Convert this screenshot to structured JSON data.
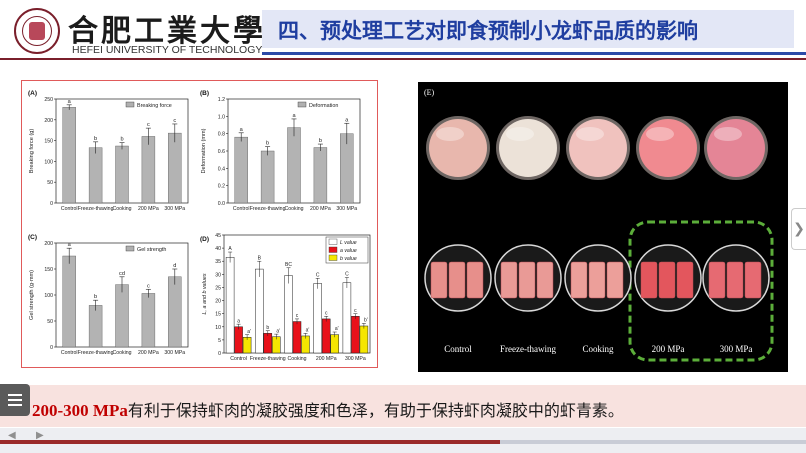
{
  "header": {
    "school_cn": "合肥工業大學",
    "school_en": "HEFEI UNIVERSITY OF TECHNOLOGY",
    "title": "四、预处理工艺对即食预制小龙虾品质的影响"
  },
  "charts": {
    "x_categories": [
      "Control",
      "Freeze-thawing",
      "Cooking",
      "200 MPa",
      "300 MPa"
    ],
    "panel_A": {
      "letter": "(A)",
      "legend": "Breaking force",
      "ylabel": "Breaking force (g)",
      "ylim": [
        0,
        250
      ],
      "yticks": [
        0,
        50,
        100,
        150,
        200,
        250
      ],
      "values": [
        230,
        133,
        137,
        160,
        168
      ],
      "errors": [
        6,
        14,
        8,
        20,
        22
      ],
      "sig": [
        "a",
        "b",
        "b",
        "c",
        "c"
      ]
    },
    "panel_B": {
      "letter": "(B)",
      "legend": "Deformation",
      "ylabel": "Deformation (mm)",
      "ylim": [
        0,
        1.2
      ],
      "yticks": [
        "0.0",
        "0.2",
        "0.4",
        "0.6",
        "0.8",
        "1.0",
        "1.2"
      ],
      "values": [
        0.76,
        0.6,
        0.87,
        0.64,
        0.8
      ],
      "errors": [
        0.05,
        0.05,
        0.1,
        0.04,
        0.12
      ],
      "sig": [
        "a",
        "b",
        "a",
        "b",
        "a"
      ]
    },
    "panel_C": {
      "letter": "(C)",
      "legend": "Gel strength",
      "ylabel": "Gel strength (g·mm)",
      "ylim": [
        0,
        200
      ],
      "yticks": [
        0,
        50,
        100,
        150,
        200
      ],
      "values": [
        175,
        80,
        120,
        103,
        135
      ],
      "errors": [
        15,
        10,
        15,
        8,
        15
      ],
      "sig": [
        "a",
        "b",
        "cd",
        "c",
        "d"
      ]
    },
    "panel_D": {
      "letter": "(D)",
      "ylabel": "L, a and b values",
      "ylim": [
        0,
        45
      ],
      "yticks": [
        0,
        5,
        10,
        15,
        20,
        25,
        30,
        35,
        40,
        45
      ],
      "legend": [
        "L value",
        "a value",
        "b value"
      ],
      "colors": [
        "#ffffff",
        "#e8111a",
        "#f5e600"
      ],
      "series": [
        {
          "name": "L value",
          "values": [
            36.5,
            32,
            29.5,
            26.5,
            26.8
          ],
          "errors": [
            2,
            3,
            3,
            2,
            2
          ],
          "sig": [
            "A",
            "B",
            "BC",
            "C",
            "C"
          ]
        },
        {
          "name": "a value",
          "values": [
            10,
            7.5,
            12,
            13,
            14
          ],
          "errors": [
            1,
            1,
            1,
            1,
            1
          ],
          "sig": [
            "a",
            "b",
            "c",
            "c",
            "c"
          ]
        },
        {
          "name": "b value",
          "values": [
            6,
            6.2,
            6.5,
            7,
            10.3
          ],
          "errors": [
            1,
            1,
            1,
            1,
            1
          ],
          "sig": [
            "a'",
            "a'",
            "a'",
            "a'",
            "b'"
          ]
        }
      ]
    }
  },
  "photo": {
    "letter": "(E)",
    "labels": [
      "Control",
      "Freeze-thawing",
      "Cooking",
      "200 MPa",
      "300 MPa"
    ],
    "colors": {
      "control": "#e8b7ad",
      "freeze": "#ece2d8",
      "cooking": "#f0c2be",
      "mpa200": "#f08a90",
      "mpa300": "#e48596",
      "dash": "#5cae3a"
    }
  },
  "conclusion": {
    "highlight": "200-300 MPa",
    "text": "有利于保持虾肉的凝胶强度和色泽，有助于保持虾肉凝胶中的虾青素。"
  },
  "viewer": {
    "progress": 0.62,
    "menu_icon": "hamburger-menu-icon",
    "next_icon": "chevron-right-icon"
  }
}
